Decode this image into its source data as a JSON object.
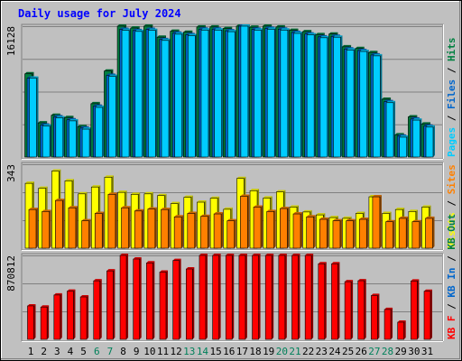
{
  "chart_data": {
    "type": "bar",
    "title": "Daily usage for July 2024",
    "categories": [
      "1",
      "2",
      "3",
      "4",
      "5",
      "6",
      "7",
      "8",
      "9",
      "10",
      "11",
      "12",
      "13",
      "14",
      "15",
      "16",
      "17",
      "18",
      "19",
      "20",
      "21",
      "22",
      "23",
      "24",
      "25",
      "26",
      "27",
      "28",
      "29",
      "30",
      "31"
    ],
    "weekend_days": [
      "6",
      "7",
      "13",
      "14",
      "20",
      "21",
      "27",
      "28"
    ],
    "panels": [
      {
        "id": "top",
        "axis_max_label": "16128",
        "axis_max": 16128,
        "right_label_parts": [
          {
            "text": "Pages",
            "color": "#00ccff"
          },
          {
            "text": " / ",
            "color": "#000000"
          },
          {
            "text": "Files",
            "color": "#0066cc"
          },
          {
            "text": " / ",
            "color": "#000000"
          },
          {
            "text": "Hits",
            "color": "#008040"
          }
        ],
        "series": [
          {
            "name": "Hits",
            "color": "#008040",
            "values": [
              10260,
              4210,
              5150,
              4870,
              3750,
              6570,
              10600,
              16128,
              15900,
              16128,
              14770,
              15500,
              15380,
              16030,
              16030,
              15840,
              16660,
              16000,
              16130,
              16030,
              15620,
              15450,
              15080,
              15160,
              13580,
              13370,
              12880,
              7120,
              2740,
              4950,
              4080
            ]
          },
          {
            "name": "Files",
            "color": "#0066cc",
            "values": [
              9720,
              3940,
              4960,
              4590,
              3570,
              6250,
              10070,
              15740,
              15590,
              15740,
              14480,
              15260,
              15080,
              15770,
              15770,
              15560,
              16410,
              15750,
              15860,
              15770,
              15350,
              15170,
              14810,
              14880,
              13320,
              13130,
              12580,
              6830,
              2570,
              4690,
              3810
            ]
          },
          {
            "name": "Pages",
            "color": "#00ccff",
            "values": [
              9720,
              3810,
              4830,
              4460,
              3440,
              6120,
              9940,
              15620,
              15480,
              15620,
              14370,
              15140,
              14960,
              15650,
              15650,
              15450,
              16300,
              15640,
              15750,
              15650,
              15240,
              15060,
              14700,
              14770,
              13190,
              13010,
              12470,
              6700,
              2450,
              4550,
              3690
            ]
          }
        ]
      },
      {
        "id": "middle",
        "axis_max_label": "343",
        "axis_max": 343,
        "right_label_parts": [
          {
            "text": "Visits",
            "color": "#ffff00"
          },
          {
            "text": " / ",
            "color": "#000000"
          },
          {
            "text": "Sites",
            "color": "#ff8000"
          }
        ],
        "series": [
          {
            "name": "Visits",
            "color": "#ffff00",
            "values": [
              265,
              245,
              315,
              275,
              222,
              250,
              290,
              228,
              220,
              222,
              215,
              182,
              208,
              188,
              204,
              159,
              285,
              235,
              205,
              230,
              168,
              148,
              136,
              125,
              122,
              142,
              210,
              142,
              158,
              150,
              168
            ]
          },
          {
            "name": "Sites",
            "color": "#ff8000",
            "values": [
              158,
              150,
              195,
              165,
              112,
              142,
              220,
              165,
              152,
              160,
              158,
              128,
              142,
              130,
              140,
              112,
              212,
              168,
              150,
              162,
              140,
              128,
              118,
              112,
              112,
              118,
              210,
              108,
              122,
              108,
              122
            ]
          }
        ]
      },
      {
        "id": "bottom",
        "axis_max_label": "870812",
        "axis_max": 870812,
        "right_label_parts": [
          {
            "text": "KB F",
            "color": "#ff0000"
          },
          {
            "text": " / ",
            "color": "#000000"
          },
          {
            "text": "KB In",
            "color": "#0066cc"
          },
          {
            "text": " / ",
            "color": "#000000"
          },
          {
            "text": "KB Out",
            "color": "#008040"
          }
        ],
        "series": [
          {
            "name": "KB F",
            "color": "#ff0000",
            "values": [
              347000,
              335000,
              460000,
              500000,
              440000,
              607000,
              710000,
              890000,
              833000,
              793000,
              698000,
              818000,
              730000,
              949000,
              949000,
              940000,
              1060000,
              908000,
              927000,
              995000,
              925000,
              882000,
              784000,
              784000,
              598000,
              608000,
              455000,
              310000,
              178000,
              605000,
              499000
            ]
          }
        ]
      }
    ]
  }
}
